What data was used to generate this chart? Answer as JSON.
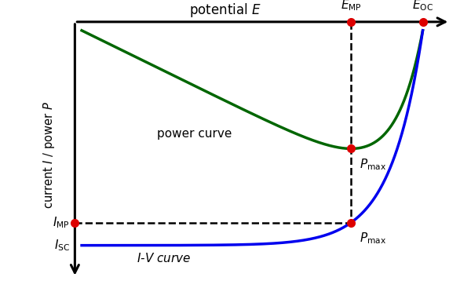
{
  "iv_color": "#0000ee",
  "power_color": "#006600",
  "dot_color": "#dd0000",
  "bg_color": "#ffffff",
  "axis_lw": 2.2,
  "curve_lw": 2.5,
  "dash_lw": 1.8,
  "dot_size": 7,
  "figsize": [
    6.0,
    3.81
  ],
  "dpi": 100,
  "k": 11.0,
  "V_OC": 0.97,
  "I_ph": 1.0
}
